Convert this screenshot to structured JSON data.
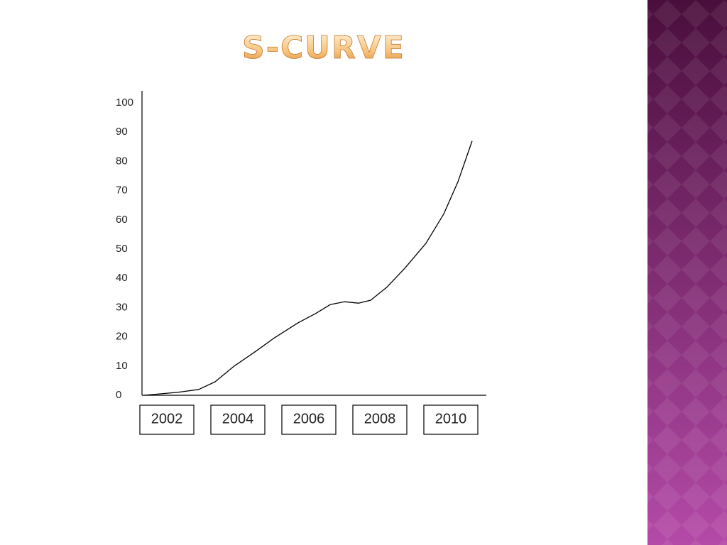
{
  "chart_data": {
    "type": "line",
    "title": "S-CURVE",
    "x": [
      2001.36,
      2002.3,
      2002.9,
      2003.36,
      2003.9,
      2004.5,
      2005.0,
      2005.7,
      2006.2,
      2006.6,
      2007.0,
      2007.4,
      2007.74,
      2008.2,
      2008.7,
      2009.3,
      2009.8,
      2010.2,
      2010.6
    ],
    "values": [
      0,
      1,
      2,
      4.6,
      10,
      15,
      19.4,
      24.8,
      28,
      31,
      32,
      31.5,
      32.5,
      37,
      43.4,
      52,
      62,
      73,
      87
    ],
    "color": "#000000",
    "xlim": [
      2001.3,
      2011
    ],
    "xticks": [
      2002,
      2004,
      2006,
      2008,
      2010
    ],
    "ylim": [
      0,
      100
    ],
    "yticks": [
      0,
      10,
      20,
      30,
      40,
      50,
      60,
      70,
      80,
      90,
      100
    ]
  }
}
